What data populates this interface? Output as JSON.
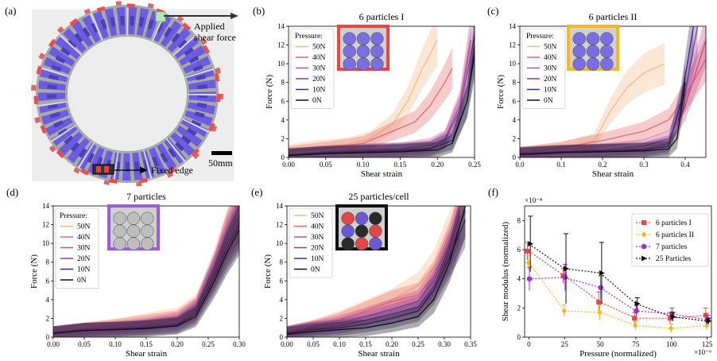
{
  "panel_a": {
    "label": "(a)",
    "force_label": "Applied shear force",
    "fixed_label": "Fixed edge",
    "scale_label": "50mm"
  },
  "chart_data": [
    {
      "id": "b",
      "label": "(b)",
      "type": "line",
      "title": "6 particles I",
      "xlabel": "Shear strain",
      "ylabel": "Force (N)",
      "xlim": [
        0,
        0.25
      ],
      "ylim": [
        0,
        14
      ],
      "xticks": [
        "0.00",
        "0.05",
        "0.10",
        "0.15",
        "0.20",
        "0.25"
      ],
      "xtick_values": [
        0,
        0.05,
        0.1,
        0.15,
        0.2,
        0.25
      ],
      "yticks": [
        0,
        2,
        4,
        6,
        8,
        10,
        12,
        14
      ],
      "legend_title": "Pressure:",
      "legend_position": "top-left",
      "inset_border": "#ee4444",
      "inset_bg": "#7a6ee0",
      "series": [
        {
          "name": "50N",
          "color": "#f5b98a",
          "x": [
            0,
            0.04,
            0.08,
            0.11,
            0.14,
            0.16,
            0.18,
            0.2
          ],
          "y": [
            0.8,
            1.2,
            1.4,
            2.0,
            3.6,
            6.0,
            9.5,
            12.5
          ]
        },
        {
          "name": "40N",
          "color": "#e46a6e",
          "x": [
            0,
            0.05,
            0.1,
            0.14,
            0.17,
            0.19,
            0.21,
            0.22
          ],
          "y": [
            0.6,
            1.0,
            1.5,
            2.8,
            3.8,
            5.5,
            8.0,
            9.5
          ]
        },
        {
          "name": "30N",
          "color": "#c94a8a",
          "x": [
            0,
            0.05,
            0.1,
            0.15,
            0.19,
            0.21,
            0.23,
            0.245
          ],
          "y": [
            0.3,
            0.6,
            0.8,
            0.9,
            1.3,
            2.0,
            5.5,
            12.5
          ]
        },
        {
          "name": "20N",
          "color": "#8a3e9c",
          "x": [
            0,
            0.05,
            0.1,
            0.15,
            0.19,
            0.21,
            0.23,
            0.25
          ],
          "y": [
            0.3,
            0.5,
            0.7,
            0.8,
            1.0,
            1.8,
            5.0,
            13.0
          ]
        },
        {
          "name": "10N",
          "color": "#3f2a7a",
          "x": [
            0,
            0.05,
            0.1,
            0.15,
            0.19,
            0.22,
            0.24,
            0.25
          ],
          "y": [
            0.3,
            0.5,
            0.6,
            0.7,
            0.9,
            1.8,
            6.0,
            12.0
          ]
        },
        {
          "name": "0N",
          "color": "#111111",
          "x": [
            0,
            0.05,
            0.1,
            0.15,
            0.2,
            0.22,
            0.24,
            0.25
          ],
          "y": [
            0.2,
            0.4,
            0.5,
            0.6,
            0.8,
            1.5,
            6.0,
            11.0
          ]
        }
      ]
    },
    {
      "id": "c",
      "label": "(c)",
      "type": "line",
      "title": "6 particles II",
      "xlabel": "Shear strain",
      "ylabel": "Force (N)",
      "xlim": [
        0,
        0.45
      ],
      "ylim": [
        0,
        14
      ],
      "xticks": [
        "0.0",
        "0.1",
        "0.2",
        "0.3",
        "0.4"
      ],
      "xtick_values": [
        0,
        0.1,
        0.2,
        0.3,
        0.4
      ],
      "yticks": [
        0,
        2,
        4,
        6,
        8,
        10,
        12,
        14
      ],
      "legend_title": "Pressure:",
      "legend_position": "top-left",
      "inset_border": "#f5b820",
      "inset_bg": "#7a6ee0",
      "series": [
        {
          "name": "50N",
          "color": "#f5b98a",
          "x": [
            0,
            0.1,
            0.18,
            0.22,
            0.26,
            0.3,
            0.35
          ],
          "y": [
            0.6,
            1.0,
            1.8,
            5.0,
            7.5,
            9.0,
            10.0
          ]
        },
        {
          "name": "40N",
          "color": "#e46a6e",
          "x": [
            0,
            0.1,
            0.2,
            0.3,
            0.36,
            0.4,
            0.45
          ],
          "y": [
            0.5,
            1.0,
            1.8,
            2.8,
            4.0,
            6.5,
            10.5
          ]
        },
        {
          "name": "30N",
          "color": "#c94a8a",
          "x": [
            0,
            0.1,
            0.2,
            0.3,
            0.36,
            0.4,
            0.45
          ],
          "y": [
            0.4,
            0.6,
            0.8,
            1.2,
            2.0,
            5.5,
            12.5
          ]
        },
        {
          "name": "20N",
          "color": "#8a3e9c",
          "x": [
            0,
            0.1,
            0.2,
            0.3,
            0.36,
            0.4,
            0.43
          ],
          "y": [
            0.4,
            0.6,
            0.7,
            0.9,
            1.5,
            7.0,
            14.0
          ]
        },
        {
          "name": "10N",
          "color": "#3f2a7a",
          "x": [
            0,
            0.1,
            0.2,
            0.3,
            0.36,
            0.39,
            0.42
          ],
          "y": [
            0.4,
            0.6,
            0.7,
            0.8,
            1.2,
            6.0,
            14.0
          ]
        },
        {
          "name": "0N",
          "color": "#111111",
          "x": [
            0,
            0.1,
            0.2,
            0.3,
            0.36,
            0.38,
            0.4
          ],
          "y": [
            0.3,
            0.5,
            0.6,
            0.7,
            0.9,
            2.0,
            8.0
          ]
        }
      ]
    },
    {
      "id": "d",
      "label": "(d)",
      "type": "line",
      "title": "7 particles",
      "xlabel": "Shear strain",
      "ylabel": "Force (N)",
      "xlim": [
        0,
        0.3
      ],
      "ylim": [
        0,
        14
      ],
      "xticks": [
        "0.00",
        "0.05",
        "0.10",
        "0.15",
        "0.20",
        "0.25",
        "0.30"
      ],
      "xtick_values": [
        0,
        0.05,
        0.1,
        0.15,
        0.2,
        0.25,
        0.3
      ],
      "yticks": [
        0,
        2,
        4,
        6,
        8,
        10,
        12,
        14
      ],
      "legend_title": "Pressure:",
      "legend_position": "top-left",
      "inset_border": "#9b5ed6",
      "inset_bg": "#bdbdbd",
      "series": [
        {
          "name": "50N",
          "color": "#f5b98a",
          "x": [
            0,
            0.05,
            0.1,
            0.15,
            0.2,
            0.23,
            0.26,
            0.28,
            0.3
          ],
          "y": [
            0.5,
            0.9,
            1.3,
            1.8,
            2.3,
            3.5,
            7.0,
            11.0,
            14.0
          ]
        },
        {
          "name": "40N",
          "color": "#e46a6e",
          "x": [
            0,
            0.05,
            0.1,
            0.15,
            0.2,
            0.23,
            0.26,
            0.28,
            0.3
          ],
          "y": [
            0.5,
            0.9,
            1.2,
            1.6,
            2.0,
            3.2,
            7.5,
            11.0,
            13.0
          ]
        },
        {
          "name": "30N",
          "color": "#c94a8a",
          "x": [
            0,
            0.05,
            0.1,
            0.15,
            0.2,
            0.23,
            0.26,
            0.28,
            0.3
          ],
          "y": [
            0.5,
            0.8,
            1.0,
            1.3,
            1.8,
            3.0,
            7.0,
            10.5,
            13.0
          ]
        },
        {
          "name": "20N",
          "color": "#8a3e9c",
          "x": [
            0,
            0.05,
            0.1,
            0.15,
            0.2,
            0.23,
            0.26,
            0.28,
            0.3
          ],
          "y": [
            0.5,
            0.8,
            0.9,
            1.1,
            1.5,
            2.8,
            7.0,
            10.0,
            12.5
          ]
        },
        {
          "name": "10N",
          "color": "#3f2a7a",
          "x": [
            0,
            0.05,
            0.1,
            0.15,
            0.2,
            0.23,
            0.26,
            0.28,
            0.3
          ],
          "y": [
            0.4,
            0.7,
            0.8,
            1.0,
            1.3,
            2.5,
            6.5,
            9.5,
            12.0
          ]
        },
        {
          "name": "0N",
          "color": "#111111",
          "x": [
            0,
            0.05,
            0.1,
            0.15,
            0.2,
            0.23,
            0.26,
            0.28,
            0.3
          ],
          "y": [
            0.4,
            0.7,
            0.8,
            0.9,
            1.2,
            2.2,
            6.0,
            9.0,
            11.5
          ]
        }
      ]
    },
    {
      "id": "e",
      "label": "(e)",
      "type": "line",
      "title": "25 particles/cell",
      "xlabel": "Shear strain",
      "ylabel": "Force (N)",
      "xlim": [
        0,
        0.35
      ],
      "ylim": [
        0,
        14
      ],
      "xticks": [
        "0.00",
        "0.05",
        "0.10",
        "0.15",
        "0.20",
        "0.25",
        "0.30",
        "0.35"
      ],
      "xtick_values": [
        0,
        0.05,
        0.1,
        0.15,
        0.2,
        0.25,
        0.3,
        0.35
      ],
      "yticks": [
        0,
        2,
        4,
        6,
        8,
        10,
        12,
        14
      ],
      "legend_title": "",
      "legend_position": "top-left",
      "inset_border": "#111111",
      "inset_bg": "#6a5ad0",
      "series": [
        {
          "name": "50N",
          "color": "#f5b98a",
          "x": [
            0,
            0.05,
            0.1,
            0.15,
            0.2,
            0.25,
            0.28,
            0.31,
            0.33
          ],
          "y": [
            0.6,
            1.2,
            2.0,
            3.0,
            4.0,
            5.5,
            7.5,
            11.0,
            14.0
          ]
        },
        {
          "name": "40N",
          "color": "#e46a6e",
          "x": [
            0,
            0.05,
            0.1,
            0.15,
            0.2,
            0.25,
            0.28,
            0.31,
            0.33
          ],
          "y": [
            0.6,
            1.1,
            1.8,
            2.8,
            3.8,
            4.5,
            6.5,
            10.0,
            13.0
          ]
        },
        {
          "name": "30N",
          "color": "#c94a8a",
          "x": [
            0,
            0.05,
            0.1,
            0.15,
            0.2,
            0.25,
            0.28,
            0.31,
            0.33
          ],
          "y": [
            0.5,
            1.0,
            1.5,
            2.2,
            3.0,
            3.8,
            6.0,
            9.5,
            13.0
          ]
        },
        {
          "name": "20N",
          "color": "#8a3e9c",
          "x": [
            0,
            0.05,
            0.1,
            0.15,
            0.2,
            0.25,
            0.28,
            0.31,
            0.34
          ],
          "y": [
            0.5,
            0.9,
            1.2,
            1.8,
            2.5,
            3.2,
            5.5,
            9.0,
            13.5
          ]
        },
        {
          "name": "10N",
          "color": "#3f2a7a",
          "x": [
            0,
            0.05,
            0.1,
            0.15,
            0.2,
            0.25,
            0.28,
            0.31,
            0.34
          ],
          "y": [
            0.4,
            0.8,
            1.0,
            1.4,
            2.0,
            2.8,
            5.0,
            8.5,
            12.5
          ]
        },
        {
          "name": "0N",
          "color": "#111111",
          "x": [
            0,
            0.05,
            0.1,
            0.15,
            0.2,
            0.25,
            0.28,
            0.31,
            0.34
          ],
          "y": [
            0.3,
            0.6,
            0.8,
            1.0,
            1.5,
            2.2,
            4.0,
            8.0,
            14.0
          ]
        }
      ]
    },
    {
      "id": "f",
      "label": "(f)",
      "type": "scatter",
      "title": "",
      "xlabel": "Pressure (normalized)",
      "ylabel": "Shear modulus (normalized)",
      "xlim": [
        -3,
        128
      ],
      "ylim": [
        0,
        9
      ],
      "xticks": [
        "0",
        "25",
        "50",
        "75",
        "100",
        "125"
      ],
      "xtick_values": [
        0,
        25,
        50,
        75,
        100,
        125
      ],
      "yticks": [
        0,
        2,
        4,
        6,
        8
      ],
      "x_exponent": "×10⁻⁶",
      "y_exponent": "×10⁻⁴",
      "legend_position": "top-right",
      "series": [
        {
          "name": "6 particles I",
          "color": "#ee4444",
          "marker": "square",
          "x": [
            0,
            25,
            50,
            75,
            100,
            125
          ],
          "y": [
            5.9,
            4.2,
            2.4,
            1.3,
            1.3,
            1.5
          ],
          "err": [
            0.6,
            0.5,
            0.7,
            0.4,
            0.4,
            0.5
          ]
        },
        {
          "name": "6 particles II",
          "color": "#f5b820",
          "marker": "diamond",
          "x": [
            0,
            25,
            50,
            75,
            100,
            125
          ],
          "y": [
            5.1,
            1.8,
            1.7,
            0.8,
            0.6,
            0.8
          ],
          "err": [
            0.5,
            0.4,
            0.5,
            0.3,
            0.3,
            0.3
          ]
        },
        {
          "name": "7 particles",
          "color": "#9b30d9",
          "marker": "circle",
          "x": [
            0,
            25,
            50,
            75,
            100,
            125
          ],
          "y": [
            4.0,
            4.1,
            3.4,
            1.8,
            1.6,
            1.2
          ],
          "err": [
            0.8,
            0.9,
            0.8,
            0.4,
            0.4,
            0.3
          ]
        },
        {
          "name": "25 Particles",
          "color": "#111111",
          "marker": "triangle",
          "x": [
            0,
            25,
            50,
            75,
            100,
            125
          ],
          "y": [
            6.4,
            4.7,
            4.4,
            2.3,
            1.4,
            1.1
          ],
          "err": [
            1.9,
            2.4,
            2.1,
            0.4,
            0.3,
            0.2
          ]
        }
      ]
    }
  ]
}
